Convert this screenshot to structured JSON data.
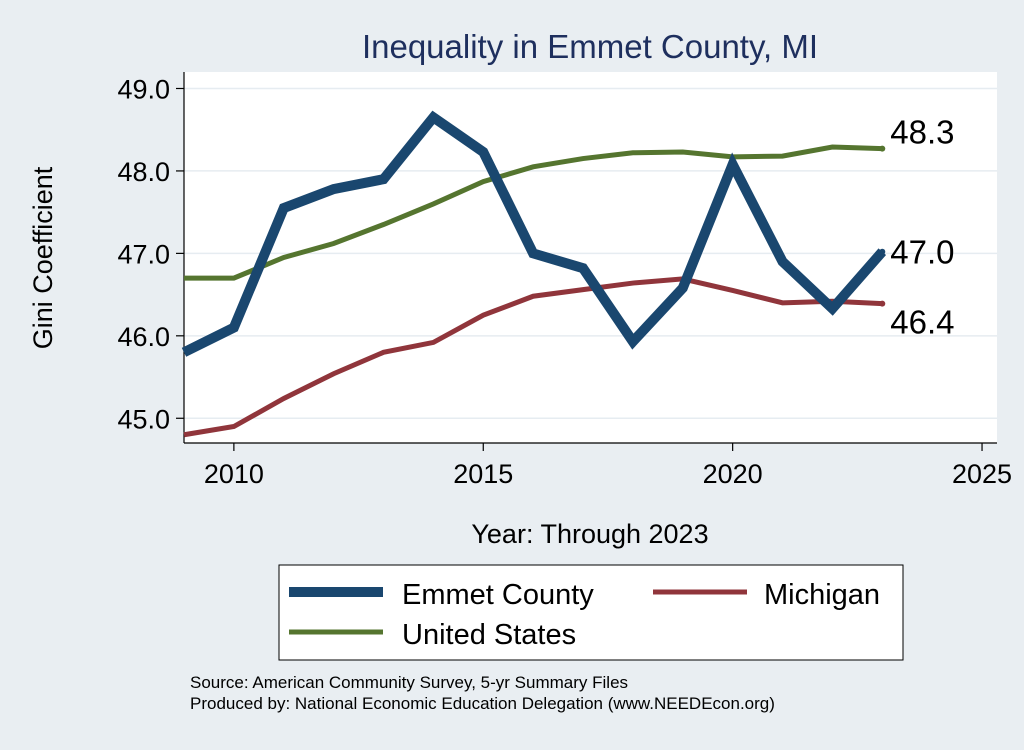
{
  "chart_data": {
    "type": "line",
    "title": "Inequality in Emmet County, MI",
    "xlabel": "Year: Through 2023",
    "ylabel": "Gini Coefficient",
    "xlim": [
      2009,
      2025.3
    ],
    "ylim": [
      44.7,
      49.2
    ],
    "xticks": [
      2010,
      2015,
      2020,
      2025
    ],
    "yticks": [
      45.0,
      46.0,
      47.0,
      48.0,
      49.0
    ],
    "ytick_labels": [
      "45.0",
      "46.0",
      "47.0",
      "48.0",
      "49.0"
    ],
    "x": [
      2009,
      2010,
      2011,
      2012,
      2013,
      2014,
      2015,
      2016,
      2017,
      2018,
      2019,
      2020,
      2021,
      2022,
      2023
    ],
    "series": [
      {
        "name": "Emmet County",
        "color": "#1a476f",
        "width": 10,
        "values": [
          45.8,
          46.1,
          47.55,
          47.78,
          47.9,
          48.65,
          48.23,
          47.0,
          46.82,
          45.93,
          46.58,
          48.08,
          46.9,
          46.33,
          47.02
        ],
        "end_label": "47.0"
      },
      {
        "name": "United States",
        "color": "#55752f",
        "width": 5,
        "values": [
          46.7,
          46.7,
          46.95,
          47.12,
          47.35,
          47.6,
          47.87,
          48.05,
          48.15,
          48.22,
          48.23,
          48.17,
          48.18,
          48.29,
          48.27
        ],
        "end_label": "48.3"
      },
      {
        "name": "Michigan",
        "color": "#90353b",
        "width": 5,
        "values": [
          44.8,
          44.9,
          45.24,
          45.54,
          45.8,
          45.92,
          46.25,
          46.48,
          46.56,
          46.64,
          46.69,
          46.55,
          46.4,
          46.42,
          46.39
        ],
        "end_label": "46.4"
      }
    ],
    "legend": {
      "placement": "bottom",
      "items": [
        "Emmet County",
        "Michigan",
        "United States"
      ]
    },
    "notes": [
      "Source: American Community Survey, 5-yr Summary Files",
      "Produced by: National Economic Education Delegation (www.NEEDEcon.org)"
    ]
  }
}
